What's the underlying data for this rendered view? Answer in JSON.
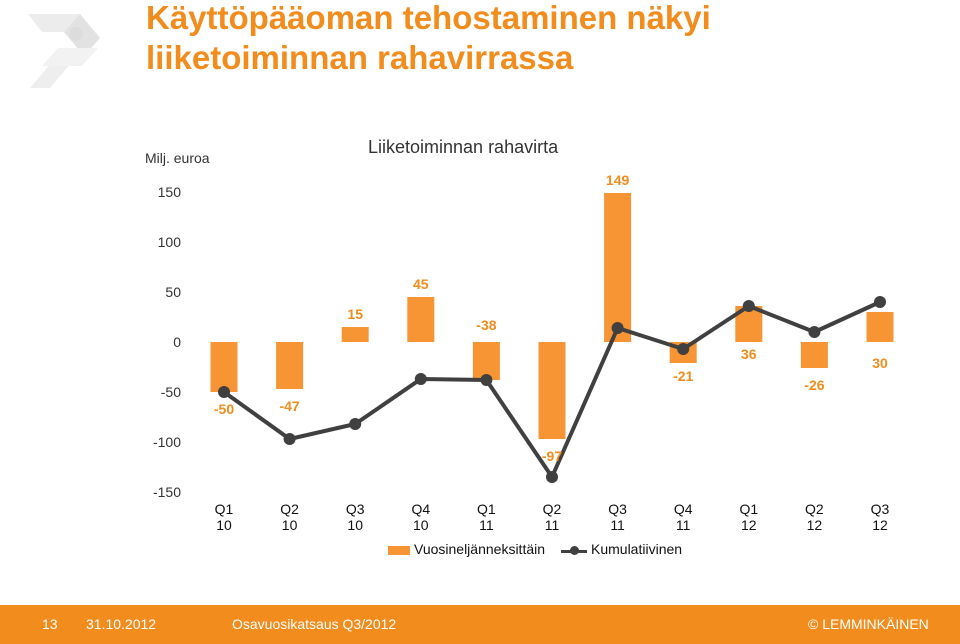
{
  "page": {
    "title": "Käyttöpääoman tehostaminen näkyi\nliiketoiminnan rahavirrassa"
  },
  "colors": {
    "accent": "#f28c1d",
    "bar": "#f79433",
    "line": "#404040",
    "footer_bg": "#f28c1d"
  },
  "chart_data": {
    "type": "bar",
    "title": "Liiketoiminnan rahavirta",
    "ylabel": "Milj. euroa",
    "xlabel": "",
    "ylim": [
      -150,
      150
    ],
    "yticks": [
      150,
      100,
      50,
      0,
      -50,
      -100,
      -150
    ],
    "grid": false,
    "legend_position": "bottom",
    "categories": [
      [
        "Q1",
        "10"
      ],
      [
        "Q2",
        "10"
      ],
      [
        "Q3",
        "10"
      ],
      [
        "Q4",
        "10"
      ],
      [
        "Q1",
        "11"
      ],
      [
        "Q2",
        "11"
      ],
      [
        "Q3",
        "11"
      ],
      [
        "Q4",
        "11"
      ],
      [
        "Q1",
        "12"
      ],
      [
        "Q2",
        "12"
      ],
      [
        "Q3",
        "12"
      ]
    ],
    "series": [
      {
        "name": "Vuosineljänneksittäin",
        "type": "bar",
        "color": "#f79433",
        "values": [
          -50,
          -47,
          15,
          45,
          -38,
          -97,
          149,
          -21,
          36,
          -26,
          30
        ],
        "labels": [
          "-50",
          "-47",
          "15",
          "45",
          "-38",
          "-97",
          "149",
          "-21",
          "36",
          "-26",
          "30"
        ]
      },
      {
        "name": "Kumulatiivinen",
        "type": "line",
        "color": "#404040",
        "values": [
          -50,
          -97,
          -82,
          -37,
          -38,
          -135,
          14,
          -7,
          36,
          10,
          40
        ]
      }
    ]
  },
  "footer": {
    "page_number": "13",
    "date": "31.10.2012",
    "report": "Osavuosikatsaus Q3/2012",
    "brand": "© LEMMINKÄINEN"
  }
}
